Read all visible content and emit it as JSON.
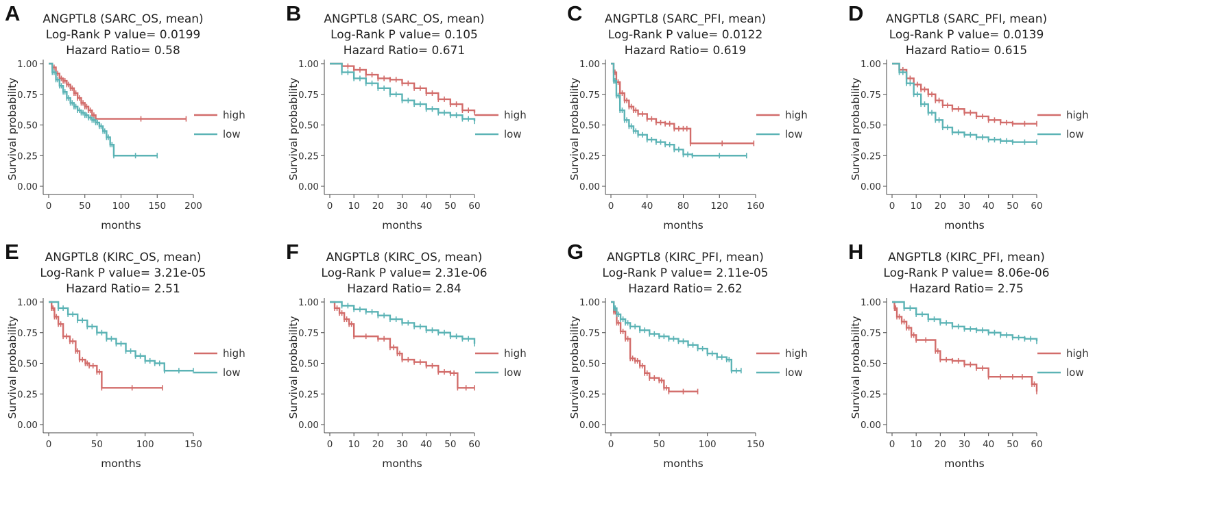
{
  "figure": {
    "ylabel": "Survival probability",
    "xlabel": "months",
    "legend": [
      "high",
      "low"
    ],
    "colors": {
      "high": "#d26c6a",
      "low": "#5bb3b5"
    }
  },
  "chart_data": [
    {
      "panel": "A",
      "type": "line",
      "step": true,
      "title": [
        "ANGPTL8 (SARC_OS, mean)",
        "Log-Rank P value= 0.0199",
        "Hazard Ratio= 0.58"
      ],
      "xlabel": "months",
      "ylabel": "Survival probability",
      "xlim": [
        0,
        200
      ],
      "xticks": [
        0,
        50,
        100,
        150,
        200
      ],
      "ylim": [
        0,
        1
      ],
      "yticks": [
        "0.00",
        "0.25",
        "0.50",
        "0.75",
        "1.00"
      ],
      "legend_position": "right",
      "series": [
        {
          "name": "high",
          "color": "#d26c6a",
          "x": [
            0,
            5,
            10,
            15,
            20,
            25,
            30,
            35,
            40,
            45,
            50,
            55,
            60,
            65,
            190
          ],
          "y": [
            1.0,
            0.97,
            0.92,
            0.88,
            0.86,
            0.83,
            0.8,
            0.76,
            0.72,
            0.68,
            0.65,
            0.62,
            0.58,
            0.55,
            0.55
          ]
        },
        {
          "name": "low",
          "color": "#5bb3b5",
          "x": [
            0,
            5,
            10,
            15,
            20,
            25,
            30,
            35,
            40,
            45,
            50,
            55,
            60,
            65,
            70,
            75,
            80,
            85,
            90,
            150
          ],
          "y": [
            1.0,
            0.93,
            0.87,
            0.82,
            0.77,
            0.72,
            0.68,
            0.65,
            0.62,
            0.6,
            0.58,
            0.56,
            0.54,
            0.52,
            0.49,
            0.45,
            0.4,
            0.34,
            0.25,
            0.25
          ]
        }
      ]
    },
    {
      "panel": "B",
      "type": "line",
      "step": true,
      "title": [
        "ANGPTL8 (SARC_OS, mean)",
        "Log-Rank P value= 0.105",
        "Hazard Ratio= 0.671"
      ],
      "xlabel": "months",
      "ylabel": "Survival probability",
      "xlim": [
        0,
        60
      ],
      "xticks": [
        0,
        10,
        20,
        30,
        40,
        50,
        60
      ],
      "ylim": [
        0,
        1
      ],
      "yticks": [
        "0.00",
        "0.25",
        "0.50",
        "0.75",
        "1.00"
      ],
      "legend_position": "right",
      "series": [
        {
          "name": "high",
          "color": "#d26c6a",
          "x": [
            0,
            5,
            10,
            15,
            20,
            25,
            30,
            35,
            40,
            45,
            50,
            55,
            60
          ],
          "y": [
            1.0,
            0.98,
            0.95,
            0.91,
            0.88,
            0.87,
            0.84,
            0.8,
            0.76,
            0.71,
            0.67,
            0.62,
            0.6
          ]
        },
        {
          "name": "low",
          "color": "#5bb3b5",
          "x": [
            0,
            5,
            10,
            15,
            20,
            25,
            30,
            35,
            40,
            45,
            50,
            55,
            60
          ],
          "y": [
            1.0,
            0.93,
            0.88,
            0.84,
            0.8,
            0.75,
            0.7,
            0.67,
            0.63,
            0.6,
            0.58,
            0.55,
            0.53
          ]
        }
      ]
    },
    {
      "panel": "C",
      "type": "line",
      "step": true,
      "title": [
        "ANGPTL8 (SARC_PFI, mean)",
        "Log-Rank P value= 0.0122",
        "Hazard Ratio= 0.619"
      ],
      "xlabel": "months",
      "ylabel": "Survival probability",
      "xlim": [
        0,
        160
      ],
      "xticks": [
        0,
        40,
        80,
        120,
        160
      ],
      "ylim": [
        0,
        1
      ],
      "yticks": [
        "0.00",
        "0.25",
        "0.50",
        "0.75",
        "1.00"
      ],
      "legend_position": "right",
      "series": [
        {
          "name": "high",
          "color": "#d26c6a",
          "x": [
            0,
            3,
            6,
            10,
            15,
            20,
            25,
            30,
            40,
            50,
            60,
            70,
            80,
            88,
            158
          ],
          "y": [
            1.0,
            0.93,
            0.85,
            0.76,
            0.7,
            0.65,
            0.62,
            0.59,
            0.55,
            0.52,
            0.51,
            0.47,
            0.47,
            0.35,
            0.35
          ]
        },
        {
          "name": "low",
          "color": "#5bb3b5",
          "x": [
            0,
            3,
            6,
            10,
            15,
            20,
            25,
            30,
            40,
            50,
            60,
            70,
            80,
            90,
            150
          ],
          "y": [
            1.0,
            0.86,
            0.74,
            0.62,
            0.54,
            0.49,
            0.45,
            0.42,
            0.38,
            0.36,
            0.34,
            0.3,
            0.26,
            0.25,
            0.25
          ]
        }
      ]
    },
    {
      "panel": "D",
      "type": "line",
      "step": true,
      "title": [
        "ANGPTL8 (SARC_PFI, mean)",
        "Log-Rank P value= 0.0139",
        "Hazard Ratio= 0.615"
      ],
      "xlabel": "months",
      "ylabel": "Survival probability",
      "xlim": [
        0,
        60
      ],
      "xticks": [
        0,
        10,
        20,
        30,
        40,
        50,
        60
      ],
      "ylim": [
        0,
        1
      ],
      "yticks": [
        "0.00",
        "0.25",
        "0.50",
        "0.75",
        "1.00"
      ],
      "legend_position": "right",
      "series": [
        {
          "name": "high",
          "color": "#d26c6a",
          "x": [
            0,
            3,
            6,
            9,
            12,
            15,
            18,
            21,
            25,
            30,
            35,
            40,
            45,
            50,
            60
          ],
          "y": [
            1.0,
            0.95,
            0.88,
            0.83,
            0.79,
            0.75,
            0.7,
            0.66,
            0.63,
            0.6,
            0.57,
            0.54,
            0.52,
            0.51,
            0.51
          ]
        },
        {
          "name": "low",
          "color": "#5bb3b5",
          "x": [
            0,
            3,
            6,
            9,
            12,
            15,
            18,
            21,
            25,
            30,
            35,
            40,
            45,
            50,
            60
          ],
          "y": [
            1.0,
            0.93,
            0.84,
            0.75,
            0.67,
            0.6,
            0.54,
            0.48,
            0.44,
            0.42,
            0.4,
            0.38,
            0.37,
            0.36,
            0.36
          ]
        }
      ]
    },
    {
      "panel": "E",
      "type": "line",
      "step": true,
      "title": [
        "ANGPTL8 (KIRC_OS, mean)",
        "Log-Rank P value= 3.21e-05",
        "Hazard Ratio= 2.51"
      ],
      "xlabel": "months",
      "ylabel": "Survival probability",
      "xlim": [
        0,
        150
      ],
      "xticks": [
        0,
        50,
        100,
        150
      ],
      "ylim": [
        0,
        1
      ],
      "yticks": [
        "0.00",
        "0.25",
        "0.50",
        "0.75",
        "1.00"
      ],
      "legend_position": "right",
      "series": [
        {
          "name": "high",
          "color": "#d26c6a",
          "x": [
            0,
            3,
            6,
            10,
            15,
            22,
            28,
            32,
            38,
            42,
            50,
            55,
            118
          ],
          "y": [
            1.0,
            0.95,
            0.88,
            0.82,
            0.72,
            0.68,
            0.6,
            0.53,
            0.5,
            0.48,
            0.43,
            0.3,
            0.3
          ]
        },
        {
          "name": "low",
          "color": "#5bb3b5",
          "x": [
            0,
            10,
            20,
            30,
            40,
            50,
            60,
            70,
            80,
            90,
            100,
            110,
            120,
            150
          ],
          "y": [
            1.0,
            0.95,
            0.9,
            0.85,
            0.8,
            0.75,
            0.7,
            0.66,
            0.6,
            0.56,
            0.52,
            0.5,
            0.44,
            0.44
          ]
        }
      ]
    },
    {
      "panel": "F",
      "type": "line",
      "step": true,
      "title": [
        "ANGPTL8 (KIRC_OS, mean)",
        "Log-Rank P value= 2.31e-06",
        "Hazard Ratio= 2.84"
      ],
      "xlabel": "months",
      "ylabel": "Survival probability",
      "xlim": [
        0,
        60
      ],
      "xticks": [
        0,
        10,
        20,
        30,
        40,
        50,
        60
      ],
      "ylim": [
        0,
        1
      ],
      "yticks": [
        "0.00",
        "0.25",
        "0.50",
        "0.75",
        "1.00"
      ],
      "legend_position": "right",
      "series": [
        {
          "name": "high",
          "color": "#d26c6a",
          "x": [
            0,
            2,
            4,
            6,
            8,
            10,
            20,
            25,
            28,
            30,
            35,
            40,
            45,
            50,
            53,
            60
          ],
          "y": [
            1.0,
            0.95,
            0.91,
            0.86,
            0.82,
            0.72,
            0.7,
            0.63,
            0.58,
            0.53,
            0.51,
            0.48,
            0.43,
            0.42,
            0.3,
            0.3
          ]
        },
        {
          "name": "low",
          "color": "#5bb3b5",
          "x": [
            0,
            5,
            10,
            15,
            20,
            25,
            30,
            35,
            40,
            45,
            50,
            55,
            60
          ],
          "y": [
            1.0,
            0.97,
            0.94,
            0.92,
            0.89,
            0.86,
            0.83,
            0.8,
            0.77,
            0.75,
            0.72,
            0.7,
            0.66
          ]
        }
      ]
    },
    {
      "panel": "G",
      "type": "line",
      "step": true,
      "title": [
        "ANGPTL8 (KIRC_PFI, mean)",
        "Log-Rank P value= 2.11e-05",
        "Hazard Ratio= 2.62"
      ],
      "xlabel": "months",
      "ylabel": "Survival probability",
      "xlim": [
        0,
        150
      ],
      "xticks": [
        0,
        50,
        100,
        150
      ],
      "ylim": [
        0,
        1
      ],
      "yticks": [
        "0.00",
        "0.25",
        "0.50",
        "0.75",
        "1.00"
      ],
      "legend_position": "right",
      "series": [
        {
          "name": "high",
          "color": "#d26c6a",
          "x": [
            0,
            3,
            6,
            10,
            15,
            20,
            25,
            30,
            35,
            40,
            50,
            55,
            60,
            90
          ],
          "y": [
            1.0,
            0.92,
            0.83,
            0.76,
            0.7,
            0.54,
            0.52,
            0.48,
            0.42,
            0.38,
            0.36,
            0.3,
            0.27,
            0.27
          ]
        },
        {
          "name": "low",
          "color": "#5bb3b5",
          "x": [
            0,
            3,
            6,
            10,
            15,
            20,
            30,
            40,
            50,
            60,
            70,
            80,
            90,
            100,
            110,
            120,
            125,
            135
          ],
          "y": [
            1.0,
            0.95,
            0.9,
            0.86,
            0.83,
            0.8,
            0.77,
            0.74,
            0.72,
            0.7,
            0.68,
            0.65,
            0.62,
            0.58,
            0.55,
            0.53,
            0.44,
            0.44
          ]
        }
      ]
    },
    {
      "panel": "H",
      "type": "line",
      "step": true,
      "title": [
        "ANGPTL8 (KIRC_PFI, mean)",
        "Log-Rank P value= 8.06e-06",
        "Hazard Ratio= 2.75"
      ],
      "xlabel": "months",
      "ylabel": "Survival probability",
      "xlim": [
        0,
        60
      ],
      "xticks": [
        0,
        10,
        20,
        30,
        40,
        50,
        60
      ],
      "ylim": [
        0,
        1
      ],
      "yticks": [
        "0.00",
        "0.25",
        "0.50",
        "0.75",
        "1.00"
      ],
      "legend_position": "right",
      "series": [
        {
          "name": "high",
          "color": "#d26c6a",
          "x": [
            0,
            1,
            2,
            4,
            6,
            8,
            10,
            18,
            20,
            25,
            30,
            35,
            40,
            50,
            58,
            60
          ],
          "y": [
            1.0,
            0.95,
            0.88,
            0.84,
            0.79,
            0.73,
            0.69,
            0.6,
            0.53,
            0.52,
            0.49,
            0.46,
            0.39,
            0.39,
            0.33,
            0.27
          ]
        },
        {
          "name": "low",
          "color": "#5bb3b5",
          "x": [
            0,
            5,
            10,
            15,
            20,
            25,
            30,
            35,
            40,
            45,
            50,
            55,
            60
          ],
          "y": [
            1.0,
            0.95,
            0.9,
            0.86,
            0.83,
            0.8,
            0.78,
            0.77,
            0.75,
            0.73,
            0.71,
            0.7,
            0.68
          ]
        }
      ]
    }
  ]
}
